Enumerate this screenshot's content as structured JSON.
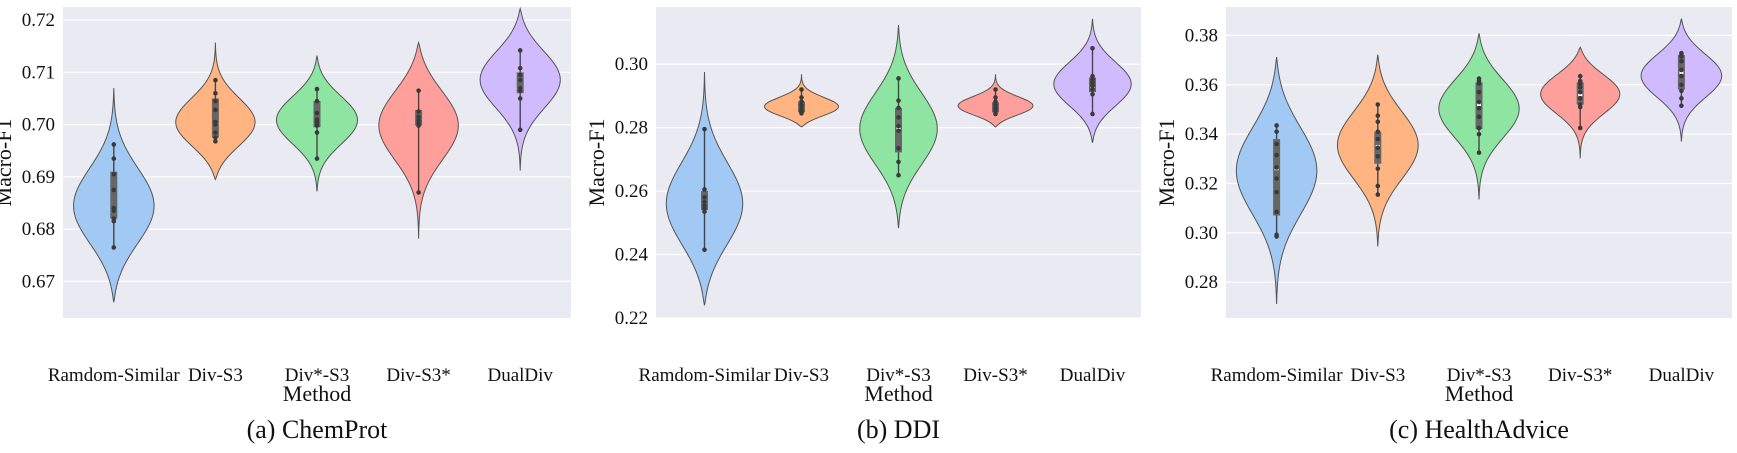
{
  "colors": {
    "Ramdom-Similar": "#a1c9f4",
    "Div-S3": "#ffb482",
    "Div*-S3": "#8de5a1",
    "Div-S3*": "#ff9f9b",
    "DualDiv": "#d0bbff"
  },
  "chart_data": [
    {
      "type": "violin",
      "caption": "(a) ChemProt",
      "xlabel": "Method",
      "ylabel": "Macro-F1",
      "categories": [
        "Ramdom-Similar",
        "Div-S3",
        "Div*-S3",
        "Div-S3*",
        "DualDiv"
      ],
      "ylim": [
        0.663,
        0.7225
      ],
      "yticks": [
        "0.67",
        "0.68",
        "0.69",
        "0.70",
        "0.71",
        "0.72"
      ],
      "grid": true,
      "violins": [
        {
          "min": 0.666,
          "max": 0.707,
          "peak": 0.684,
          "q1": 0.682,
          "median": 0.6835,
          "q3": 0.691,
          "points": [
            0.6765,
            0.6815,
            0.682,
            0.6835,
            0.684,
            0.6875,
            0.6905,
            0.6935,
            0.6962
          ]
        },
        {
          "min": 0.6895,
          "max": 0.7157,
          "peak": 0.7,
          "q1": 0.6975,
          "median": 0.7,
          "q3": 0.705,
          "points": [
            0.6968,
            0.6975,
            0.6985,
            0.7,
            0.7005,
            0.7028,
            0.7045,
            0.706,
            0.7085
          ]
        },
        {
          "min": 0.6872,
          "max": 0.7132,
          "peak": 0.701,
          "q1": 0.6995,
          "median": 0.701,
          "q3": 0.7045,
          "points": [
            0.6935,
            0.6985,
            0.6998,
            0.7005,
            0.701,
            0.7022,
            0.7045,
            0.7068
          ]
        },
        {
          "min": 0.6782,
          "max": 0.7157,
          "peak": 0.7005,
          "q1": 0.6998,
          "median": 0.7,
          "q3": 0.7028,
          "points": [
            0.687,
            0.6998,
            0.7002,
            0.7008,
            0.7015,
            0.7025,
            0.7065
          ]
        },
        {
          "min": 0.6912,
          "max": 0.7222,
          "peak": 0.709,
          "q1": 0.706,
          "median": 0.707,
          "q3": 0.71,
          "points": [
            0.699,
            0.705,
            0.7065,
            0.707,
            0.7085,
            0.7095,
            0.7108,
            0.7142
          ]
        }
      ]
    },
    {
      "type": "violin",
      "caption": "(b) DDI",
      "xlabel": "Method",
      "ylabel": "Macro-F1",
      "categories": [
        "Ramdom-Similar",
        "Div-S3",
        "Div*-S3",
        "Div-S3*",
        "DualDiv"
      ],
      "ylim": [
        0.22,
        0.318
      ],
      "yticks": [
        "0.22",
        "0.24",
        "0.26",
        "0.28",
        "0.30"
      ],
      "grid": true,
      "violins": [
        {
          "min": 0.224,
          "max": 0.2975,
          "peak": 0.255,
          "q1": 0.254,
          "median": 0.256,
          "q3": 0.26,
          "points": [
            0.2415,
            0.2535,
            0.2545,
            0.2555,
            0.2565,
            0.258,
            0.2605,
            0.2795
          ]
        },
        {
          "min": 0.2802,
          "max": 0.2968,
          "peak": 0.2862,
          "q1": 0.2848,
          "median": 0.286,
          "q3": 0.2882,
          "points": [
            0.2845,
            0.285,
            0.2855,
            0.286,
            0.287,
            0.2882,
            0.2895,
            0.292
          ]
        },
        {
          "min": 0.2483,
          "max": 0.3123,
          "peak": 0.2795,
          "q1": 0.2722,
          "median": 0.2795,
          "q3": 0.2862,
          "points": [
            0.265,
            0.2692,
            0.2735,
            0.279,
            0.2805,
            0.2832,
            0.2862,
            0.2885,
            0.2955
          ]
        },
        {
          "min": 0.2802,
          "max": 0.2968,
          "peak": 0.2865,
          "q1": 0.2848,
          "median": 0.2862,
          "q3": 0.288,
          "points": [
            0.2843,
            0.285,
            0.2856,
            0.2862,
            0.2872,
            0.2882,
            0.2895,
            0.292
          ]
        },
        {
          "min": 0.2752,
          "max": 0.3143,
          "peak": 0.2935,
          "q1": 0.2912,
          "median": 0.293,
          "q3": 0.2958,
          "points": [
            0.2843,
            0.2905,
            0.292,
            0.2932,
            0.2942,
            0.2952,
            0.2962,
            0.305
          ]
        }
      ]
    },
    {
      "type": "violin",
      "caption": "(c) HealthAdvice",
      "xlabel": "Method",
      "ylabel": "Macro-F1",
      "categories": [
        "Ramdom-Similar",
        "Div-S3",
        "Div*-S3",
        "Div-S3*",
        "DualDiv"
      ],
      "ylim": [
        0.2655,
        0.3915
      ],
      "yticks": [
        "0.28",
        "0.30",
        "0.32",
        "0.34",
        "0.36",
        "0.38"
      ],
      "grid": true,
      "violins": [
        {
          "min": 0.2712,
          "max": 0.3712,
          "peak": 0.326,
          "q1": 0.307,
          "median": 0.326,
          "q3": 0.338,
          "points": [
            0.2985,
            0.2992,
            0.3085,
            0.3165,
            0.322,
            0.3265,
            0.3315,
            0.336,
            0.341,
            0.3435
          ]
        },
        {
          "min": 0.2945,
          "max": 0.3722,
          "peak": 0.336,
          "q1": 0.328,
          "median": 0.335,
          "q3": 0.341,
          "points": [
            0.3155,
            0.319,
            0.326,
            0.331,
            0.3345,
            0.338,
            0.341,
            0.345,
            0.3475,
            0.352
          ]
        },
        {
          "min": 0.3135,
          "max": 0.3808,
          "peak": 0.351,
          "q1": 0.342,
          "median": 0.352,
          "q3": 0.361,
          "points": [
            0.3325,
            0.34,
            0.3425,
            0.347,
            0.3505,
            0.353,
            0.357,
            0.3605,
            0.3615,
            0.3625
          ]
        },
        {
          "min": 0.3302,
          "max": 0.3752,
          "peak": 0.357,
          "q1": 0.352,
          "median": 0.356,
          "q3": 0.361,
          "points": [
            0.3425,
            0.351,
            0.352,
            0.3545,
            0.357,
            0.359,
            0.3605,
            0.3615,
            0.3635
          ]
        },
        {
          "min": 0.337,
          "max": 0.3868,
          "peak": 0.364,
          "q1": 0.358,
          "median": 0.365,
          "q3": 0.372,
          "points": [
            0.3515,
            0.3545,
            0.3575,
            0.36,
            0.3635,
            0.366,
            0.3695,
            0.3715,
            0.372,
            0.3728
          ]
        }
      ]
    }
  ]
}
